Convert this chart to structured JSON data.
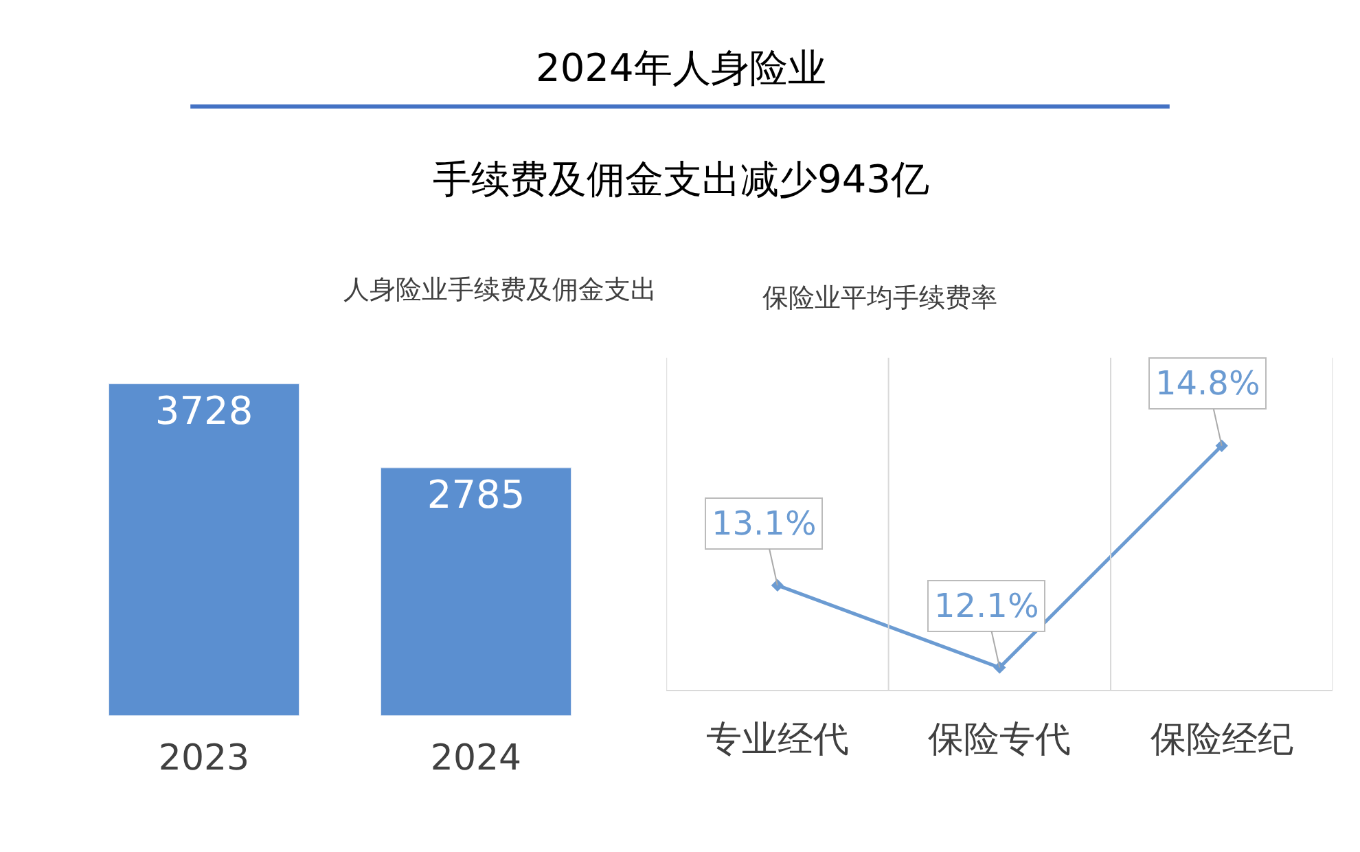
{
  "chart_data": [
    {
      "type": "bar",
      "title": "人身险业手续费及佣金支出",
      "annotations": [
        "2024年人身险业",
        "手续费及佣金支出减少943亿"
      ],
      "categories": [
        "2023",
        "2024"
      ],
      "values": [
        3728,
        2785
      ],
      "color": "#5b8fd0",
      "data_labels": true
    },
    {
      "type": "line",
      "title": "保险业平均手续费率",
      "categories": [
        "专业经代",
        "保险专代",
        "保险经纪"
      ],
      "values": [
        13.1,
        12.1,
        14.8
      ],
      "value_labels": [
        "13.1%",
        "12.1%",
        "14.8%"
      ],
      "color": "#6b9bd2",
      "marker": "diamond",
      "grid": "x"
    }
  ]
}
